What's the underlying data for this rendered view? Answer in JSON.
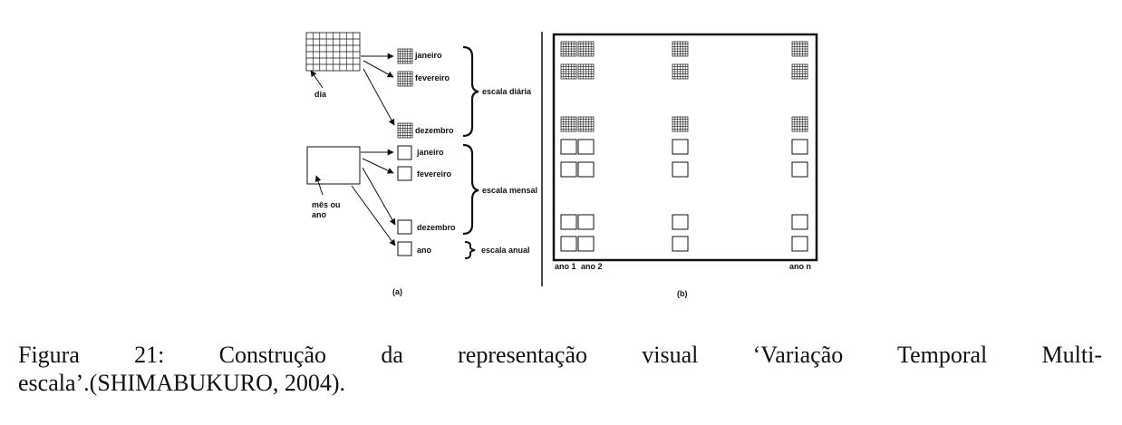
{
  "panel_a": {
    "daily_grid_label": "dia",
    "daily_items": [
      "janeiro",
      "fevereiro",
      "dezembro"
    ],
    "daily_scale_label": "escala diária",
    "monthly_box_label_1": "mês ou",
    "monthly_box_label_2": "ano",
    "monthly_items": [
      "janeiro",
      "fevereiro",
      "dezembro"
    ],
    "monthly_scale_label": "escala mensal",
    "annual_item": "ano",
    "annual_scale_label": "escala anual",
    "panel_label": "(a)"
  },
  "panel_b": {
    "year_labels": [
      "ano 1",
      "ano 2",
      "ano n"
    ],
    "panel_label": "(b)"
  },
  "caption": {
    "line1": "Figura 21:  Construção da representação visual ‘Variação Temporal Multi-",
    "line2": "escala’.(SHIMABUKURO, 2004)."
  }
}
